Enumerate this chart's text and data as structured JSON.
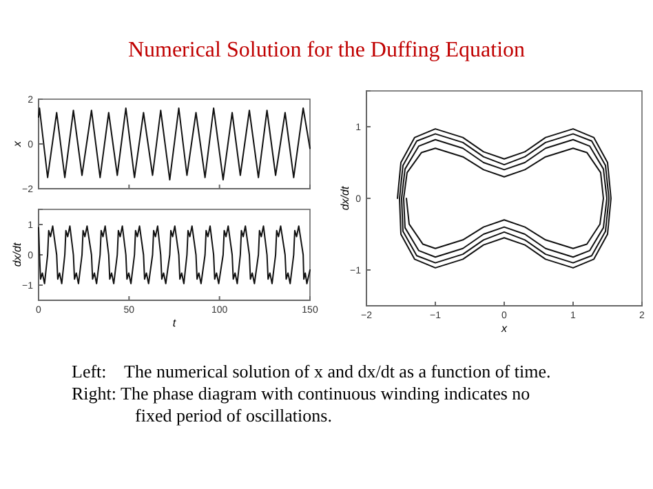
{
  "chart_data": [
    {
      "type": "line",
      "title": "Numerical Solution for the Duffing Equation",
      "ylabel": "x",
      "xlim": [
        0,
        150
      ],
      "xticks": [
        {
          "value": 0,
          "label": null
        },
        {
          "value": 50,
          "label": null
        },
        {
          "value": 100,
          "label": null
        },
        {
          "value": 150,
          "label": null
        }
      ],
      "ylim": [
        -2,
        2
      ],
      "yticks": [
        -2,
        0,
        2
      ],
      "tick_labels": "y",
      "grid": false,
      "annotations": [
        "Left:    The numerical solution of x and dx/dt as a function of time.",
        "Right: The phase diagram with continuous winding indicates no fixed period of oscillations."
      ],
      "series": [
        {
          "color": "#111111",
          "x": [
            0,
            0.5,
            5,
            10,
            14.5,
            19.25,
            24,
            29.25,
            34,
            38.75,
            43.5,
            48.25,
            53,
            58,
            63,
            67.5,
            72.5,
            77.5,
            82,
            87,
            92,
            96.75,
            102,
            107,
            111.5,
            116.5,
            121.5,
            126.25,
            131,
            136.25,
            141,
            146.25,
            150
          ],
          "values": [
            1.2,
            1.6,
            -1.5,
            1.4,
            -1.5,
            1.5,
            -1.4,
            1.5,
            -1.5,
            1.4,
            -1.4,
            1.6,
            -1.5,
            1.4,
            -1.4,
            1.5,
            -1.6,
            1.6,
            -1.4,
            1.4,
            -1.5,
            1.6,
            -1.6,
            1.4,
            -1.4,
            1.5,
            -1.5,
            1.5,
            -1.4,
            1.4,
            -1.5,
            1.6,
            -0.2
          ]
        }
      ]
    },
    {
      "type": "line",
      "xlabel": "t",
      "ylabel": "dx/dt",
      "xlim": [
        0,
        150
      ],
      "xticks": [
        0,
        50,
        100,
        150
      ],
      "ylim": [
        -1.5,
        1.5
      ],
      "yticks": [
        -1,
        0,
        1
      ],
      "grid": false,
      "series": [
        {
          "color": "#111111",
          "x": [
            0,
            0.5,
            1.1,
            2.1,
            3.3,
            5,
            5.6,
            6.6,
            7.8,
            10,
            10.6,
            11.6,
            12.8,
            14.5,
            15.1,
            16.1,
            17.3,
            19.25,
            19.85,
            20.85,
            22.05,
            24,
            24.6,
            25.6,
            26.8,
            29.25,
            29.85,
            30.85,
            32.05,
            34,
            34.6,
            35.6,
            36.8,
            38.75,
            39.35,
            40.35,
            41.55,
            43.5,
            44.1,
            45.1,
            46.3,
            48.25,
            48.85,
            49.85,
            51.05,
            53,
            53.6,
            54.6,
            55.8,
            58,
            58.6,
            59.6,
            60.8,
            63,
            63.6,
            64.6,
            65.8,
            67.5,
            68.1,
            69.1,
            70.3,
            72.5,
            73.1,
            74.1,
            75.3,
            77.5,
            78.1,
            79.1,
            80.3,
            82,
            82.6,
            83.6,
            84.8,
            87,
            87.6,
            88.6,
            89.8,
            92,
            92.6,
            93.6,
            94.8,
            96.75,
            97.35,
            98.35,
            99.55,
            102,
            102.6,
            103.6,
            104.8,
            107,
            107.6,
            108.6,
            109.8,
            111.5,
            112.1,
            113.1,
            114.3,
            116.5,
            117.1,
            118.1,
            119.3,
            121.5,
            122.1,
            123.1,
            124.3,
            126.25,
            126.85,
            127.85,
            129.05,
            131,
            131.6,
            132.6,
            133.8,
            136.25,
            136.85,
            137.85,
            139.05,
            141,
            141.6,
            142.6,
            143.8,
            146.25,
            146.6,
            147.4,
            148.3,
            150
          ],
          "values": [
            0.9,
            0,
            -0.8,
            -0.6,
            -0.95,
            0,
            0.8,
            0.6,
            0.95,
            0,
            -0.8,
            -0.6,
            -0.95,
            0,
            0.8,
            0.6,
            0.95,
            0,
            -0.8,
            -0.6,
            -0.95,
            0,
            0.8,
            0.6,
            0.95,
            0,
            -0.8,
            -0.6,
            -0.95,
            0,
            0.8,
            0.6,
            0.95,
            0,
            -0.8,
            -0.6,
            -0.95,
            0,
            0.8,
            0.6,
            0.95,
            0,
            -0.8,
            -0.6,
            -0.95,
            0,
            0.8,
            0.6,
            0.95,
            0,
            -0.8,
            -0.6,
            -0.95,
            0,
            0.8,
            0.6,
            0.95,
            0,
            -0.8,
            -0.6,
            -0.95,
            0,
            0.8,
            0.6,
            0.95,
            0,
            -0.8,
            -0.6,
            -0.95,
            0,
            0.8,
            0.6,
            0.95,
            0,
            -0.8,
            -0.6,
            -0.95,
            0,
            0.8,
            0.6,
            0.95,
            0,
            -0.8,
            -0.6,
            -0.95,
            0,
            0.8,
            0.6,
            0.95,
            0,
            -0.8,
            -0.6,
            -0.95,
            0,
            0.8,
            0.6,
            0.95,
            0,
            -0.8,
            -0.6,
            -0.95,
            0,
            0.8,
            0.6,
            0.95,
            0,
            -0.8,
            -0.6,
            -0.95,
            0,
            0.8,
            0.6,
            0.95,
            0,
            -0.8,
            -0.6,
            -0.95,
            0,
            0.8,
            0.6,
            0.95,
            0,
            -0.8,
            -0.6,
            -0.95,
            -0.5
          ]
        }
      ]
    },
    {
      "type": "line",
      "xlabel": "x",
      "ylabel": "dx/dt",
      "xlim": [
        -2,
        2
      ],
      "xticks": [
        -2,
        -1,
        0,
        1,
        2
      ],
      "ylim": [
        -1.5,
        1.5
      ],
      "yticks": [
        -1,
        0,
        1
      ],
      "grid": false,
      "series": [
        {
          "color": "#111111",
          "x": [
            -1.55,
            -1.5,
            -1.3,
            -1,
            -0.6,
            -0.3,
            0,
            0.3,
            0.6,
            1,
            1.3,
            1.5,
            1.55,
            1.5,
            1.3,
            1,
            0.6,
            0.3,
            0,
            -0.3,
            -0.6,
            -1,
            -1.3,
            -1.5,
            -1.52,
            -1.47,
            -1.27,
            -1,
            -0.6,
            -0.3,
            0,
            0.3,
            0.6,
            1,
            1.27,
            1.47,
            1.52,
            1.47,
            1.27,
            1,
            0.6,
            0.3,
            0,
            -0.3,
            -0.6,
            -1,
            -1.27,
            -1.47,
            -1.49,
            -1.44,
            -1.24,
            -1,
            -0.6,
            -0.3,
            0,
            0.3,
            0.6,
            1,
            1.24,
            1.44,
            1.49,
            1.44,
            1.24,
            1,
            0.6,
            0.3,
            0,
            -0.3,
            -0.6,
            -1,
            -1.24,
            -1.44,
            -1.46,
            -1.41,
            -1.2,
            -1,
            -0.6,
            -0.3,
            0,
            0.3,
            0.6,
            1,
            1.2,
            1.4,
            1.44,
            1.39,
            1.2,
            1,
            0.6,
            0.3,
            0,
            -0.3,
            -0.6,
            -1,
            -1.18,
            -1.38,
            -1.42
          ],
          "values": [
            0,
            0.5,
            0.85,
            0.97,
            0.85,
            0.65,
            0.55,
            0.65,
            0.85,
            0.97,
            0.85,
            0.5,
            0,
            -0.5,
            -0.85,
            -0.97,
            -0.85,
            -0.65,
            -0.55,
            -0.65,
            -0.85,
            -0.97,
            -0.85,
            -0.5,
            0,
            0.46,
            0.8,
            0.9,
            0.78,
            0.58,
            0.47,
            0.58,
            0.78,
            0.9,
            0.8,
            0.46,
            0,
            -0.46,
            -0.8,
            -0.9,
            -0.78,
            -0.58,
            -0.47,
            -0.58,
            -0.78,
            -0.9,
            -0.8,
            -0.46,
            0,
            0.41,
            0.73,
            0.82,
            0.7,
            0.5,
            0.4,
            0.5,
            0.7,
            0.82,
            0.73,
            0.41,
            0,
            -0.41,
            -0.73,
            -0.82,
            -0.7,
            -0.5,
            -0.4,
            -0.5,
            -0.7,
            -0.82,
            -0.73,
            -0.41,
            0,
            0.36,
            0.64,
            0.7,
            0.58,
            0.4,
            0.3,
            0.4,
            0.58,
            0.7,
            0.64,
            0.36,
            0,
            -0.36,
            -0.64,
            -0.7,
            -0.58,
            -0.4,
            -0.3,
            -0.4,
            -0.58,
            -0.7,
            -0.64,
            -0.36,
            0
          ]
        }
      ]
    }
  ]
}
